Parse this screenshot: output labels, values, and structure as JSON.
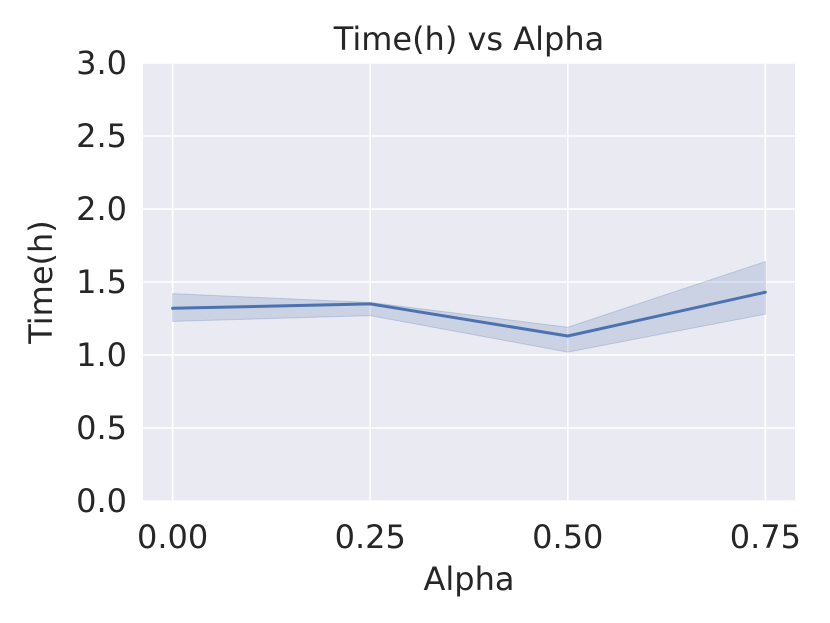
{
  "chart_data": {
    "type": "line",
    "title": "Time(h) vs Alpha",
    "xlabel": "Alpha",
    "ylabel": "Time(h)",
    "x": [
      0.0,
      0.25,
      0.5,
      0.75
    ],
    "x_tick_labels": [
      "0.00",
      "0.25",
      "0.50",
      "0.75"
    ],
    "y_ticks": [
      0.0,
      0.5,
      1.0,
      1.5,
      2.0,
      2.5,
      3.0
    ],
    "y_tick_labels": [
      "0.0",
      "0.5",
      "1.0",
      "1.5",
      "2.0",
      "2.5",
      "3.0"
    ],
    "xlim": [
      -0.0375,
      0.7875
    ],
    "ylim": [
      0,
      3.0
    ],
    "grid": true,
    "series": [
      {
        "values": [
          1.32,
          1.35,
          1.13,
          1.43
        ],
        "ci_lower": [
          1.23,
          1.27,
          1.02,
          1.28
        ],
        "ci_upper": [
          1.42,
          1.36,
          1.19,
          1.64
        ]
      }
    ],
    "colors": {
      "plot_bg": "#eaeaf2",
      "grid": "#ffffff",
      "line": "#4c72b0",
      "band": "#4c72b0",
      "text": "#262626"
    }
  }
}
